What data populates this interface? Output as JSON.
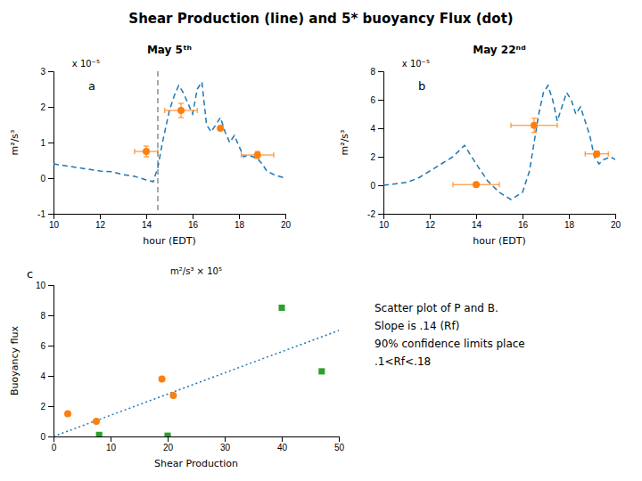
{
  "chart_data": [
    {
      "type": "line",
      "title": "Shear Production (line) and 5* buoyancy Flux (dot)",
      "subtitle": "May 5ᵗʰ",
      "annotations": [
        "a",
        "x 10⁻⁵"
      ],
      "xlabel": "hour (EDT)",
      "ylabel": "m²/s³",
      "xlim": [
        10,
        20
      ],
      "ylim": [
        -1,
        3
      ],
      "xticks": [
        10,
        12,
        14,
        16,
        18,
        20
      ],
      "yticks": [
        -1,
        0,
        1,
        2,
        3
      ],
      "vlines": [
        14.5
      ],
      "series": [
        {
          "type": "line",
          "line_style": "dashed",
          "x": [
            10,
            10.5,
            11,
            11.5,
            12,
            12.5,
            13,
            13.5,
            14,
            14.3,
            14.5,
            14.7,
            15.0,
            15.2,
            15.4,
            15.6,
            15.8,
            16.0,
            16.2,
            16.4,
            16.6,
            16.8,
            17.0,
            17.2,
            17.4,
            17.6,
            17.8,
            18.0,
            18.2,
            18.4,
            18.6,
            18.8,
            19.0,
            19.2,
            19.5,
            20.0
          ],
          "values": [
            0.4,
            0.35,
            0.3,
            0.25,
            0.2,
            0.18,
            0.1,
            0.05,
            -0.05,
            -0.1,
            0.3,
            1.0,
            1.9,
            2.3,
            2.6,
            2.4,
            2.1,
            1.8,
            2.5,
            2.7,
            1.5,
            1.3,
            1.5,
            1.7,
            1.3,
            1.0,
            1.2,
            0.9,
            0.6,
            0.65,
            0.6,
            0.55,
            0.4,
            0.2,
            0.1,
            0.0
          ]
        },
        {
          "type": "scatter",
          "marker": "circle",
          "x": [
            14.0,
            15.5,
            17.2,
            18.8
          ],
          "values": [
            0.75,
            1.9,
            1.4,
            0.65
          ],
          "x_error": [
            0.5,
            0.7,
            0.0,
            0.7
          ],
          "y_error": [
            0.15,
            0.2,
            0.0,
            0.1
          ]
        }
      ]
    },
    {
      "type": "line",
      "subtitle": "May 22ⁿᵈ",
      "annotations": [
        "b",
        "x 10⁻⁵"
      ],
      "xlabel": "hour (EDT)",
      "ylabel": "m²/s³",
      "xlim": [
        10,
        20
      ],
      "ylim": [
        -2,
        8
      ],
      "xticks": [
        10,
        12,
        14,
        16,
        18,
        20
      ],
      "yticks": [
        -2,
        0,
        2,
        4,
        6,
        8
      ],
      "series": [
        {
          "type": "line",
          "line_style": "dashed",
          "x": [
            10,
            10.5,
            11,
            11.5,
            12,
            12.5,
            13,
            13.5,
            14,
            14.5,
            15.0,
            15.5,
            16.0,
            16.3,
            16.5,
            16.7,
            16.9,
            17.1,
            17.3,
            17.5,
            17.7,
            17.9,
            18.1,
            18.3,
            18.5,
            18.7,
            18.9,
            19.1,
            19.3,
            19.5,
            19.8,
            20.0
          ],
          "values": [
            0.0,
            0.1,
            0.2,
            0.5,
            1.0,
            1.5,
            2.0,
            2.8,
            1.5,
            0.3,
            -0.5,
            -1.0,
            -0.5,
            1.0,
            3.0,
            5.0,
            6.5,
            7.0,
            6.0,
            4.5,
            5.5,
            6.5,
            6.0,
            5.0,
            5.5,
            4.5,
            3.5,
            2.0,
            1.5,
            1.8,
            2.0,
            1.8
          ]
        },
        {
          "type": "scatter",
          "marker": "circle",
          "x": [
            14.0,
            16.5,
            19.2
          ],
          "values": [
            0.05,
            4.2,
            2.2
          ],
          "x_error": [
            1.0,
            1.0,
            0.5
          ],
          "y_error": [
            0.1,
            0.5,
            0.2
          ]
        }
      ]
    },
    {
      "type": "scatter",
      "annotations": [
        "c",
        "m²/s³ × 10⁵",
        "Scatter plot of P and B.\nSlope is .14 (Rf)\n\n90% confidence limits place\n.1<Rf<.18"
      ],
      "xlabel": "Shear Production",
      "ylabel": "Buoyancy flux",
      "xlim": [
        0,
        50
      ],
      "ylim": [
        0,
        10
      ],
      "xticks": [
        0,
        10,
        20,
        30,
        40,
        50
      ],
      "yticks": [
        0,
        2,
        4,
        6,
        8,
        10
      ],
      "series": [
        {
          "type": "line",
          "line_style": "dotted",
          "x": [
            0,
            50
          ],
          "values": [
            0,
            7.0
          ]
        },
        {
          "type": "scatter",
          "marker": "circle",
          "x": [
            2.5,
            7.5,
            19,
            21
          ],
          "values": [
            1.5,
            1.0,
            3.8,
            2.7
          ]
        },
        {
          "type": "scatter",
          "marker": "square",
          "x": [
            8,
            20,
            40,
            47
          ],
          "values": [
            0.1,
            0.05,
            8.5,
            4.3
          ]
        }
      ]
    }
  ]
}
